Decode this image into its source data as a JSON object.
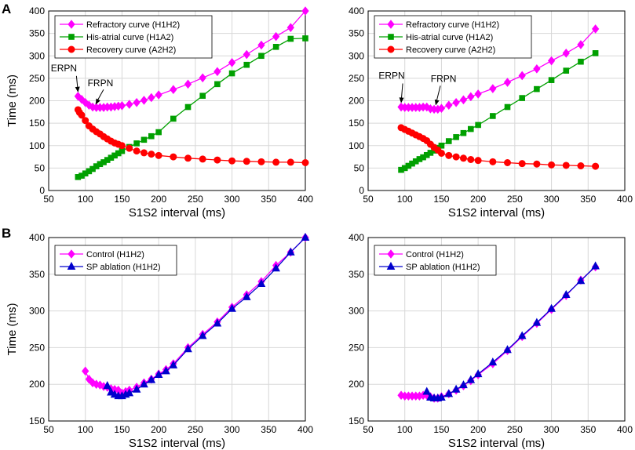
{
  "panel_labels": [
    "A",
    "B"
  ],
  "chart_data": [
    {
      "type": "line",
      "panel": "A-left",
      "xlabel": "S1S2 interval (ms)",
      "ylabel": "Time (ms)",
      "xlim": [
        50,
        400
      ],
      "ylim": [
        0,
        400
      ],
      "xticks": [
        50,
        100,
        150,
        200,
        250,
        300,
        350,
        400
      ],
      "yticks": [
        0,
        50,
        100,
        150,
        200,
        250,
        300,
        350,
        400
      ],
      "grid": true,
      "legend_position": "top-left",
      "annotations": [
        {
          "text": "ERPN",
          "x": 90,
          "y": 210
        },
        {
          "text": "FRPN",
          "x": 112,
          "y": 183
        }
      ],
      "series": [
        {
          "name": "Refractory curve (H1H2)",
          "color": "#ff00ff",
          "marker": "diamond",
          "x": [
            90,
            95,
            100,
            105,
            110,
            115,
            120,
            125,
            130,
            135,
            140,
            145,
            150,
            160,
            170,
            180,
            190,
            200,
            220,
            240,
            260,
            280,
            300,
            320,
            340,
            360,
            380,
            400
          ],
          "y": [
            210,
            203,
            196,
            190,
            186,
            185,
            185,
            185,
            186,
            186,
            187,
            188,
            189,
            192,
            196,
            201,
            207,
            213,
            225,
            237,
            251,
            265,
            285,
            303,
            324,
            343,
            363,
            400
          ]
        },
        {
          "name": "His-atrial curve (H1A2)",
          "color": "#00a000",
          "marker": "square",
          "x": [
            90,
            95,
            100,
            105,
            110,
            115,
            120,
            125,
            130,
            135,
            140,
            145,
            150,
            160,
            170,
            180,
            190,
            200,
            220,
            240,
            260,
            280,
            300,
            320,
            340,
            360,
            380,
            400
          ],
          "y": [
            30,
            33,
            38,
            43,
            48,
            54,
            59,
            63,
            68,
            73,
            78,
            83,
            88,
            97,
            105,
            113,
            121,
            130,
            160,
            186,
            211,
            237,
            261,
            280,
            300,
            320,
            338,
            339
          ]
        },
        {
          "name": "Recovery curve (A2H2)",
          "color": "#ff0000",
          "marker": "circle",
          "x": [
            90,
            92,
            95,
            100,
            105,
            110,
            115,
            120,
            125,
            130,
            135,
            140,
            145,
            150,
            160,
            170,
            180,
            190,
            200,
            220,
            240,
            260,
            280,
            300,
            320,
            340,
            360,
            380,
            400
          ],
          "y": [
            180,
            174,
            168,
            156,
            144,
            137,
            131,
            126,
            120,
            115,
            110,
            106,
            103,
            100,
            94,
            88,
            84,
            81,
            78,
            75,
            72,
            70,
            68,
            66,
            65,
            64,
            63,
            63,
            62
          ]
        }
      ]
    },
    {
      "type": "line",
      "panel": "A-right",
      "xlabel": "S1S2 interval (ms)",
      "ylabel": "",
      "xlim": [
        50,
        400
      ],
      "ylim": [
        0,
        400
      ],
      "xticks": [
        50,
        100,
        150,
        200,
        250,
        300,
        350,
        400
      ],
      "yticks": [
        0,
        50,
        100,
        150,
        200,
        250,
        300,
        350,
        400
      ],
      "grid": true,
      "legend_position": "top-left",
      "annotations": [
        {
          "text": "ERPN",
          "x": 95,
          "y": 186
        },
        {
          "text": "FRPN",
          "x": 140,
          "y": 181
        }
      ],
      "series": [
        {
          "name": "Refractory curve (H1H2)",
          "color": "#ff00ff",
          "marker": "diamond",
          "x": [
            95,
            100,
            105,
            110,
            115,
            120,
            125,
            130,
            135,
            140,
            145,
            150,
            160,
            170,
            180,
            190,
            200,
            220,
            240,
            260,
            280,
            300,
            320,
            340,
            360
          ],
          "y": [
            186,
            185,
            185,
            185,
            185,
            185,
            186,
            186,
            182,
            181,
            181,
            183,
            190,
            196,
            202,
            209,
            215,
            227,
            241,
            256,
            271,
            289,
            306,
            325,
            360
          ]
        },
        {
          "name": "His-atrial curve (H1A2)",
          "color": "#00a000",
          "marker": "square",
          "x": [
            95,
            100,
            105,
            110,
            115,
            120,
            125,
            130,
            135,
            140,
            145,
            150,
            160,
            170,
            180,
            190,
            200,
            220,
            240,
            260,
            280,
            300,
            320,
            340,
            360
          ],
          "y": [
            46,
            50,
            55,
            60,
            65,
            70,
            74,
            79,
            84,
            89,
            95,
            100,
            110,
            119,
            128,
            137,
            146,
            166,
            186,
            206,
            226,
            246,
            267,
            287,
            306
          ]
        },
        {
          "name": "Recovery curve (A2H2)",
          "color": "#ff0000",
          "marker": "circle",
          "x": [
            95,
            100,
            105,
            110,
            115,
            120,
            125,
            130,
            135,
            140,
            145,
            150,
            160,
            170,
            180,
            190,
            200,
            220,
            240,
            260,
            280,
            300,
            320,
            340,
            360
          ],
          "y": [
            140,
            136,
            132,
            128,
            124,
            120,
            116,
            111,
            103,
            96,
            90,
            83,
            78,
            75,
            72,
            69,
            67,
            64,
            62,
            60,
            59,
            57,
            56,
            55,
            54
          ]
        }
      ]
    },
    {
      "type": "line",
      "panel": "B-left",
      "xlabel": "S1S2 interval (ms)",
      "ylabel": "Time (ms)",
      "xlim": [
        50,
        400
      ],
      "ylim": [
        150,
        400
      ],
      "xticks": [
        50,
        100,
        150,
        200,
        250,
        300,
        350,
        400
      ],
      "yticks": [
        150,
        200,
        250,
        300,
        350,
        400
      ],
      "grid": true,
      "legend_position": "top-left",
      "series": [
        {
          "name": "Control (H1H2)",
          "color": "#ff00ff",
          "marker": "diamond",
          "x": [
            100,
            105,
            110,
            115,
            120,
            125,
            130,
            135,
            140,
            145,
            150,
            155,
            160,
            170,
            180,
            190,
            200,
            210,
            220,
            240,
            260,
            280,
            300,
            320,
            340,
            360,
            380,
            400
          ],
          "y": [
            218,
            207,
            202,
            200,
            199,
            197,
            196,
            194,
            193,
            192,
            188,
            190,
            192,
            196,
            202,
            207,
            214,
            220,
            228,
            250,
            268,
            285,
            305,
            322,
            340,
            362,
            380,
            400
          ]
        },
        {
          "name": "SP ablation (H1H2)",
          "color": "#0000cd",
          "marker": "triangle",
          "x": [
            130,
            135,
            140,
            145,
            150,
            155,
            160,
            170,
            180,
            190,
            200,
            210,
            220,
            240,
            260,
            280,
            300,
            320,
            340,
            360,
            380,
            400
          ],
          "y": [
            198,
            189,
            186,
            184,
            184,
            186,
            188,
            193,
            200,
            206,
            213,
            218,
            226,
            248,
            266,
            283,
            303,
            319,
            337,
            358,
            380,
            400
          ]
        }
      ]
    },
    {
      "type": "line",
      "panel": "B-right",
      "xlabel": "S1S2 interval (ms)",
      "ylabel": "",
      "xlim": [
        50,
        400
      ],
      "ylim": [
        150,
        400
      ],
      "xticks": [
        50,
        100,
        150,
        200,
        250,
        300,
        350,
        400
      ],
      "yticks": [
        150,
        200,
        250,
        300,
        350,
        400
      ],
      "grid": true,
      "legend_position": "top-left",
      "series": [
        {
          "name": "Control (H1H2)",
          "color": "#ff00ff",
          "marker": "diamond",
          "x": [
            95,
            100,
            105,
            110,
            115,
            120,
            125,
            130,
            135,
            140,
            145,
            150,
            160,
            170,
            180,
            190,
            200,
            220,
            240,
            260,
            280,
            300,
            320,
            340,
            360
          ],
          "y": [
            185,
            184,
            184,
            184,
            184,
            184,
            185,
            185,
            183,
            181,
            181,
            183,
            187,
            192,
            198,
            205,
            213,
            228,
            246,
            265,
            283,
            302,
            321,
            342,
            360
          ]
        },
        {
          "name": "SP ablation (H1H2)",
          "color": "#0000cd",
          "marker": "triangle",
          "x": [
            130,
            135,
            140,
            145,
            150,
            160,
            170,
            180,
            190,
            200,
            220,
            240,
            260,
            280,
            300,
            320,
            340,
            360
          ],
          "y": [
            190,
            182,
            181,
            181,
            182,
            187,
            193,
            199,
            206,
            214,
            230,
            247,
            266,
            284,
            303,
            322,
            341,
            361
          ]
        }
      ]
    }
  ]
}
